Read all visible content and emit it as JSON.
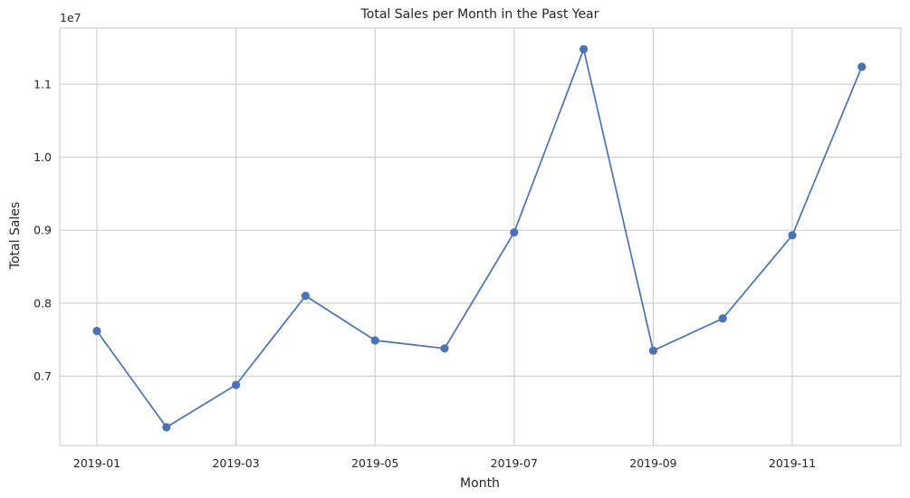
{
  "chart_data": {
    "type": "line",
    "title": "Total Sales per Month in the Past Year",
    "xlabel": "Month",
    "ylabel": "Total Sales",
    "y_offset_label": "1e7",
    "x": [
      "2019-01",
      "2019-02",
      "2019-03",
      "2019-04",
      "2019-05",
      "2019-06",
      "2019-07",
      "2019-08",
      "2019-09",
      "2019-10",
      "2019-11",
      "2019-12"
    ],
    "x_tick_labels": [
      "2019-01",
      "2019-03",
      "2019-05",
      "2019-07",
      "2019-09",
      "2019-11"
    ],
    "y_ticks": [
      0.7,
      0.8,
      0.9,
      1.0,
      1.1
    ],
    "y_tick_labels": [
      "0.7",
      "0.8",
      "0.9",
      "1.0",
      "1.1"
    ],
    "ylim": [
      0.605,
      1.177
    ],
    "series": [
      {
        "values": [
          0.762,
          0.63,
          0.688,
          0.81,
          0.749,
          0.738,
          0.897,
          1.148,
          0.735,
          0.779,
          0.893,
          1.124
        ],
        "color": "#4c72b0",
        "marker": "circle"
      }
    ],
    "grid": true,
    "legend": "none"
  }
}
